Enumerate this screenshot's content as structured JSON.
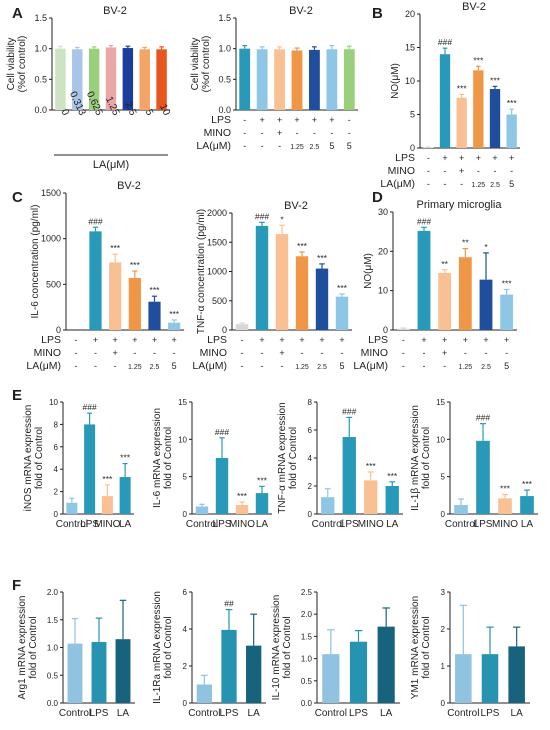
{
  "colors": {
    "viability": [
      "#cde3c3",
      "#a9c5e8",
      "#9ad07c",
      "#e9a7a8",
      "#1b3d9b",
      "#f4a464",
      "#e8561d"
    ],
    "control": "#d8d8d8",
    "lps": "#2899b8",
    "mino": "#f9c193",
    "la_low": "#ef9647",
    "la_mid": "#1f4e9d",
    "la_high": "#8ec6e6",
    "m2_control": "#8fc3e0",
    "m2_lps": "#2693b0",
    "m2_la": "#17637e",
    "axis": "#231f20"
  },
  "chart_data": [
    {
      "id": "p1",
      "panel": "A",
      "type": "bar",
      "title": "BV-2",
      "ylabel": "Cell viability\n(%of control)",
      "xlabel": "LA(μM)",
      "ylim": [
        0,
        1.5
      ],
      "yticks": [
        "0.0",
        "0.5",
        "1.0",
        "1.5"
      ],
      "categories": [
        "0",
        "0.313",
        "0.625",
        "1.25",
        "2.5",
        "5",
        "10"
      ],
      "values": [
        1.0,
        0.99,
        1.0,
        1.02,
        1.01,
        0.99,
        0.99
      ],
      "errors": [
        0.04,
        0.03,
        0.03,
        0.03,
        0.03,
        0.03,
        0.04
      ],
      "colorKeys": [
        "viability.0",
        "viability.1",
        "viability.2",
        "viability.3",
        "viability.4",
        "viability.5",
        "viability.6"
      ]
    },
    {
      "id": "p2",
      "type": "bar",
      "title": "BV-2",
      "ylabel": "Cell viability\n(%of control)",
      "ylim": [
        0,
        1.5
      ],
      "yticks": [
        "0.0",
        "0.5",
        "1.0",
        "1.5"
      ],
      "values": [
        1.0,
        0.99,
        0.99,
        0.97,
        0.98,
        0.99,
        0.99
      ],
      "errors": [
        0.05,
        0.04,
        0.04,
        0.04,
        0.05,
        0.06,
        0.05
      ],
      "colorKeys": [
        "lps",
        "la_high",
        "mino",
        "la_low",
        "la_mid",
        "la_high",
        "viability.2"
      ],
      "rows": [
        {
          "label": "LPS",
          "cells": [
            "-",
            "+",
            "+",
            "+",
            "+",
            "+",
            "-"
          ]
        },
        {
          "label": "MINO",
          "cells": [
            "-",
            "-",
            "+",
            "-",
            "-",
            "-",
            "-"
          ]
        },
        {
          "label": "LA(μM)",
          "cells": [
            "-",
            "-",
            "-",
            "1.25",
            "2.5",
            "5",
            "5"
          ]
        }
      ]
    },
    {
      "id": "p3",
      "panel": "B",
      "type": "bar",
      "title": "BV-2",
      "ylabel": "NO(μM)",
      "ylim": [
        0,
        20
      ],
      "yticks": [
        "0",
        "5",
        "10",
        "15",
        "20"
      ],
      "values": [
        0.1,
        14.0,
        7.5,
        11.6,
        8.8,
        5.0
      ],
      "errors": [
        0.05,
        0.9,
        0.5,
        0.6,
        0.4,
        0.8
      ],
      "sig": [
        "",
        "###",
        "***",
        "***",
        "***",
        "***"
      ],
      "colorKeys": [
        "control",
        "lps",
        "mino",
        "la_low",
        "la_mid",
        "la_high"
      ],
      "rows": [
        {
          "label": "LPS",
          "cells": [
            "-",
            "+",
            "+",
            "+",
            "+",
            "+"
          ]
        },
        {
          "label": "MINO",
          "cells": [
            "-",
            "-",
            "+",
            "-",
            "-",
            "-"
          ]
        },
        {
          "label": "LA(μM)",
          "cells": [
            "-",
            "-",
            "-",
            "1.25",
            "2.5",
            "5"
          ]
        }
      ]
    },
    {
      "id": "p4",
      "panel": "C",
      "type": "bar",
      "title": "BV-2",
      "ylabel": "IL-6 concentration (pg/ml)",
      "ylim": [
        0,
        1500
      ],
      "yticks": [
        "0",
        "500",
        "1000",
        "1500"
      ],
      "values": [
        0,
        1080,
        740,
        570,
        310,
        80
      ],
      "errors": [
        0,
        45,
        90,
        75,
        60,
        30
      ],
      "sig": [
        "",
        "###",
        "***",
        "***",
        "***",
        "***"
      ],
      "colorKeys": [
        "control",
        "lps",
        "mino",
        "la_low",
        "la_mid",
        "la_high"
      ],
      "rows": [
        {
          "label": "LPS",
          "cells": [
            "-",
            "+",
            "+",
            "+",
            "+",
            "+"
          ]
        },
        {
          "label": "MINO",
          "cells": [
            "-",
            "-",
            "+",
            "-",
            "-",
            "-"
          ]
        },
        {
          "label": "LA(μM)",
          "cells": [
            "-",
            "-",
            "-",
            "1.25",
            "2.5",
            "5"
          ]
        }
      ]
    },
    {
      "id": "p5",
      "type": "bar",
      "title": "BV-2",
      "ylabel": "TNF-α concentration (pg/ml)",
      "ylim": [
        0,
        2000
      ],
      "yticks": [
        "0",
        "500",
        "1000",
        "1500",
        "2000"
      ],
      "values": [
        100,
        1780,
        1640,
        1260,
        1050,
        570
      ],
      "errors": [
        20,
        60,
        150,
        75,
        80,
        45
      ],
      "sig": [
        "",
        "###",
        "*",
        "***",
        "***",
        "***"
      ],
      "colorKeys": [
        "control",
        "lps",
        "mino",
        "la_low",
        "la_mid",
        "la_high"
      ]
    },
    {
      "id": "p6",
      "panel": "D",
      "type": "bar",
      "title": "Primary microglia",
      "ylabel": "NO(μM)",
      "ylim": [
        0,
        30
      ],
      "yticks": [
        "0",
        "10",
        "20",
        "30"
      ],
      "values": [
        0.3,
        25.2,
        14.5,
        18.5,
        12.8,
        9.0
      ],
      "errors": [
        0.2,
        0.9,
        0.8,
        2.2,
        6.8,
        1.3
      ],
      "sig": [
        "",
        "###",
        "**",
        "**",
        "*",
        "***"
      ],
      "colorKeys": [
        "control",
        "lps",
        "mino",
        "la_low",
        "la_mid",
        "la_high"
      ],
      "rows": [
        {
          "label": "LPS",
          "cells": [
            "-",
            "+",
            "+",
            "+",
            "+",
            "+"
          ]
        },
        {
          "label": "MINO",
          "cells": [
            "-",
            "-",
            "+",
            "-",
            "-",
            "-"
          ]
        },
        {
          "label": "LA(μM)",
          "cells": [
            "-",
            "-",
            "-",
            "1.25",
            "2.5",
            "5"
          ]
        }
      ]
    },
    {
      "id": "p7",
      "panel": "E",
      "type": "bar",
      "ylabel": "iNOS mRNA expression\nfold of Control",
      "ylim": [
        0,
        10
      ],
      "yticks": [
        "0",
        "2",
        "4",
        "6",
        "8",
        "10"
      ],
      "categories": [
        "Control",
        "LPS",
        "MINO",
        "LA"
      ],
      "values": [
        1.0,
        8.0,
        1.6,
        3.3
      ],
      "errors": [
        0.4,
        1.0,
        1.0,
        1.2
      ],
      "sig": [
        "",
        "###",
        "***",
        "***"
      ],
      "colorKeys": [
        "la_high",
        "lps",
        "mino",
        "lps"
      ]
    },
    {
      "id": "p8",
      "type": "bar",
      "ylabel": "IL-6 mRNA expression\nfold of Control",
      "ylim": [
        0,
        15
      ],
      "yticks": [
        "0",
        "5",
        "10",
        "15"
      ],
      "categories": [
        "Control",
        "LPS",
        "MINO",
        "LA"
      ],
      "values": [
        1.0,
        7.5,
        1.2,
        2.8
      ],
      "errors": [
        0.3,
        2.7,
        0.4,
        0.9
      ],
      "sig": [
        "",
        "###",
        "***",
        "***"
      ],
      "colorKeys": [
        "la_high",
        "lps",
        "mino",
        "lps"
      ]
    },
    {
      "id": "p9",
      "type": "bar",
      "ylabel": "TNF-α mRNA expression\nfold of Control",
      "ylim": [
        0,
        8
      ],
      "yticks": [
        "0",
        "2",
        "4",
        "6",
        "8"
      ],
      "categories": [
        "Control",
        "LPS",
        "MINO",
        "LA"
      ],
      "values": [
        1.2,
        5.5,
        2.4,
        2.0
      ],
      "errors": [
        0.6,
        1.4,
        0.6,
        0.3
      ],
      "sig": [
        "",
        "###",
        "***",
        "***"
      ],
      "colorKeys": [
        "la_high",
        "lps",
        "mino",
        "lps"
      ]
    },
    {
      "id": "p10",
      "type": "bar",
      "ylabel": "IL-1β mRNA expression\nfold of Control",
      "ylim": [
        0,
        15
      ],
      "yticks": [
        "0",
        "5",
        "10",
        "15"
      ],
      "categories": [
        "Control",
        "LPS",
        "MINO",
        "LA"
      ],
      "values": [
        1.2,
        9.8,
        2.1,
        2.4
      ],
      "errors": [
        0.8,
        2.3,
        0.5,
        0.8
      ],
      "sig": [
        "",
        "###",
        "***",
        "***"
      ],
      "colorKeys": [
        "la_high",
        "lps",
        "mino",
        "lps"
      ]
    },
    {
      "id": "p11",
      "panel": "F",
      "type": "bar",
      "ylabel": "Arg1 mRNA expression\nfold of Control",
      "ylim": [
        0,
        2.0
      ],
      "yticks": [
        "0.0",
        "0.5",
        "1.0",
        "1.5",
        "2.0"
      ],
      "categories": [
        "Control",
        "LPS",
        "LA"
      ],
      "values": [
        1.07,
        1.1,
        1.15
      ],
      "errors": [
        0.45,
        0.43,
        0.7
      ],
      "sig": [
        "",
        "",
        ""
      ],
      "colorKeys": [
        "m2_control",
        "m2_lps",
        "m2_la"
      ]
    },
    {
      "id": "p12",
      "type": "bar",
      "ylabel": "IL-1Ra mRNA expression\nfold of Control",
      "ylim": [
        0,
        6
      ],
      "yticks": [
        "0",
        "2",
        "4",
        "6"
      ],
      "categories": [
        "Control",
        "LPS",
        "LA"
      ],
      "values": [
        1.0,
        3.95,
        3.1
      ],
      "errors": [
        0.5,
        1.1,
        1.7
      ],
      "sig": [
        "",
        "##",
        ""
      ],
      "colorKeys": [
        "m2_control",
        "m2_lps",
        "m2_la"
      ]
    },
    {
      "id": "p13",
      "type": "bar",
      "ylabel": "IL-10 mRNA expression\nfold of Control",
      "ylim": [
        0,
        2.5
      ],
      "yticks": [
        "0.0",
        "0.5",
        "1.0",
        "1.5",
        "2.0",
        "2.5"
      ],
      "categories": [
        "Control",
        "LPS",
        "LA"
      ],
      "values": [
        1.1,
        1.38,
        1.72
      ],
      "errors": [
        0.55,
        0.25,
        0.42
      ],
      "sig": [
        "",
        "",
        ""
      ],
      "colorKeys": [
        "m2_control",
        "m2_lps",
        "m2_la"
      ]
    },
    {
      "id": "p14",
      "type": "bar",
      "ylabel": "YM1 mRNA expression\nfold of Control",
      "ylim": [
        0,
        3
      ],
      "yticks": [
        "0",
        "1",
        "2",
        "3"
      ],
      "categories": [
        "Control",
        "LPS",
        "LA"
      ],
      "values": [
        1.32,
        1.32,
        1.53
      ],
      "errors": [
        1.32,
        0.73,
        0.52
      ],
      "sig": [
        "",
        "",
        ""
      ],
      "colorKeys": [
        "m2_control",
        "m2_lps",
        "m2_la"
      ]
    }
  ]
}
